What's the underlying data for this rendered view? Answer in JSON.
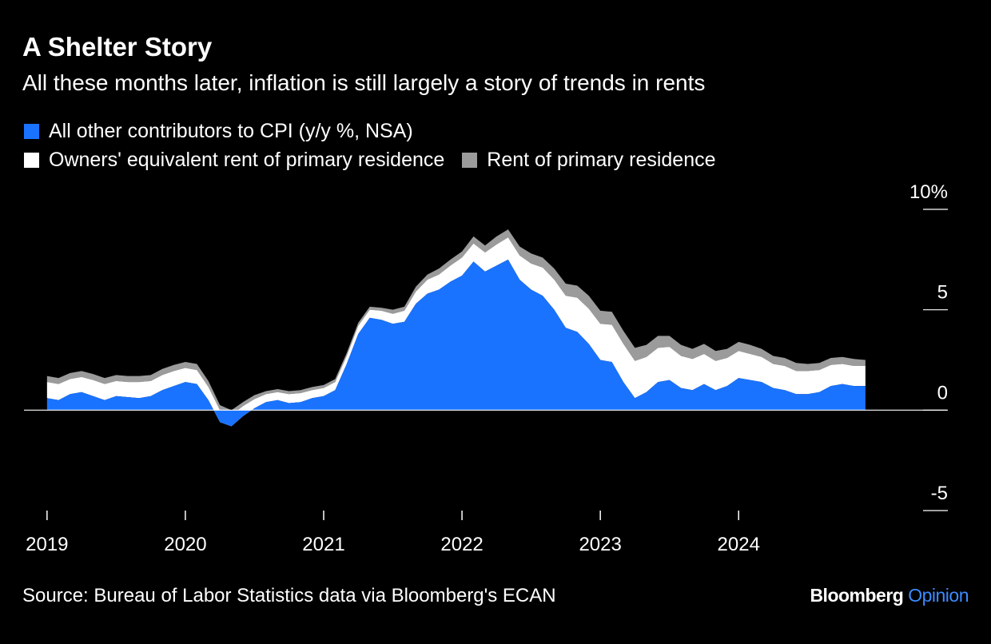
{
  "header": {
    "title": "A Shelter Story",
    "subtitle": "All these months later, inflation is still largely a story of trends in rents"
  },
  "footer": {
    "source": "Source: Bureau of Labor Statistics data via Bloomberg's ECAN",
    "brand_primary": "Bloomberg",
    "brand_secondary": "Opinion"
  },
  "colors": {
    "other": "#1a73ff",
    "oer": "#ffffff",
    "rent": "#9b9b9b",
    "background": "#000000"
  },
  "chart_data": {
    "type": "area",
    "stacked": true,
    "title": "A Shelter Story",
    "subtitle": "All these months later, inflation is still largely a story of trends in rents",
    "legend_position": "top-left",
    "grid": false,
    "ylim": [
      -5,
      10
    ],
    "y_ticks": [
      {
        "value": 10,
        "label": "10%"
      },
      {
        "value": 5,
        "label": "5"
      },
      {
        "value": 0,
        "label": "0"
      },
      {
        "value": -5,
        "label": "-5"
      }
    ],
    "xlim": [
      "2018-11",
      "2025-05"
    ],
    "x_ticks": [
      {
        "x": "2019-01",
        "label": "2019"
      },
      {
        "x": "2020-01",
        "label": "2020"
      },
      {
        "x": "2021-01",
        "label": "2021"
      },
      {
        "x": "2022-01",
        "label": "2022"
      },
      {
        "x": "2023-01",
        "label": "2023"
      },
      {
        "x": "2024-01",
        "label": "2024"
      }
    ],
    "x": [
      "2019-01",
      "2019-02",
      "2019-03",
      "2019-04",
      "2019-05",
      "2019-06",
      "2019-07",
      "2019-08",
      "2019-09",
      "2019-10",
      "2019-11",
      "2019-12",
      "2020-01",
      "2020-02",
      "2020-03",
      "2020-04",
      "2020-05",
      "2020-06",
      "2020-07",
      "2020-08",
      "2020-09",
      "2020-10",
      "2020-11",
      "2020-12",
      "2021-01",
      "2021-02",
      "2021-03",
      "2021-04",
      "2021-05",
      "2021-06",
      "2021-07",
      "2021-08",
      "2021-09",
      "2021-10",
      "2021-11",
      "2021-12",
      "2022-01",
      "2022-02",
      "2022-03",
      "2022-04",
      "2022-05",
      "2022-06",
      "2022-07",
      "2022-08",
      "2022-09",
      "2022-10",
      "2022-11",
      "2022-12",
      "2023-01",
      "2023-02",
      "2023-03",
      "2023-04",
      "2023-05",
      "2023-06",
      "2023-07",
      "2023-08",
      "2023-09",
      "2023-10",
      "2023-11",
      "2023-12",
      "2024-01",
      "2024-02",
      "2024-03",
      "2024-04",
      "2024-05",
      "2024-06",
      "2024-07",
      "2024-08",
      "2024-09",
      "2024-10",
      "2024-11",
      "2024-12"
    ],
    "series": [
      {
        "name": "All other contributors to CPI (y/y %, NSA)",
        "key": "other",
        "values": [
          0.6,
          0.5,
          0.8,
          0.9,
          0.7,
          0.5,
          0.7,
          0.65,
          0.6,
          0.7,
          1.0,
          1.2,
          1.4,
          1.3,
          0.5,
          -0.6,
          -0.8,
          -0.3,
          0.1,
          0.4,
          0.5,
          0.35,
          0.4,
          0.6,
          0.7,
          1.0,
          2.3,
          3.8,
          4.6,
          4.5,
          4.3,
          4.4,
          5.3,
          5.8,
          6.0,
          6.4,
          6.7,
          7.4,
          6.9,
          7.2,
          7.5,
          6.5,
          6.0,
          5.7,
          5.0,
          4.1,
          3.9,
          3.3,
          2.5,
          2.4,
          1.4,
          0.6,
          0.9,
          1.4,
          1.5,
          1.1,
          1.0,
          1.3,
          1.0,
          1.2,
          1.6,
          1.5,
          1.4,
          1.1,
          1.0,
          0.8,
          0.8,
          0.9,
          1.2,
          1.3,
          1.2,
          1.2
        ]
      },
      {
        "name": "Owners' equivalent rent of primary residence",
        "key": "oer",
        "values": [
          0.8,
          0.8,
          0.75,
          0.75,
          0.8,
          0.8,
          0.75,
          0.75,
          0.8,
          0.75,
          0.75,
          0.75,
          0.7,
          0.7,
          0.65,
          0.6,
          0.55,
          0.5,
          0.45,
          0.4,
          0.4,
          0.45,
          0.45,
          0.4,
          0.4,
          0.4,
          0.4,
          0.4,
          0.4,
          0.45,
          0.5,
          0.55,
          0.6,
          0.7,
          0.75,
          0.8,
          0.9,
          0.9,
          0.95,
          1.05,
          1.1,
          1.2,
          1.3,
          1.4,
          1.5,
          1.6,
          1.7,
          1.75,
          1.8,
          1.85,
          1.9,
          1.85,
          1.75,
          1.7,
          1.65,
          1.6,
          1.55,
          1.5,
          1.45,
          1.4,
          1.35,
          1.3,
          1.25,
          1.2,
          1.2,
          1.15,
          1.15,
          1.1,
          1.05,
          1.0,
          1.0,
          1.0
        ]
      },
      {
        "name": "Rent of primary residence",
        "key": "rent",
        "values": [
          0.3,
          0.3,
          0.3,
          0.3,
          0.3,
          0.3,
          0.3,
          0.3,
          0.3,
          0.3,
          0.3,
          0.3,
          0.3,
          0.3,
          0.3,
          0.25,
          0.25,
          0.2,
          0.2,
          0.15,
          0.15,
          0.15,
          0.15,
          0.15,
          0.15,
          0.15,
          0.15,
          0.15,
          0.15,
          0.15,
          0.2,
          0.2,
          0.25,
          0.25,
          0.3,
          0.3,
          0.3,
          0.35,
          0.35,
          0.4,
          0.4,
          0.45,
          0.5,
          0.5,
          0.55,
          0.6,
          0.6,
          0.65,
          0.65,
          0.65,
          0.65,
          0.65,
          0.6,
          0.6,
          0.55,
          0.55,
          0.5,
          0.5,
          0.5,
          0.45,
          0.45,
          0.45,
          0.4,
          0.4,
          0.4,
          0.4,
          0.35,
          0.35,
          0.35,
          0.35,
          0.35,
          0.3
        ]
      }
    ]
  }
}
